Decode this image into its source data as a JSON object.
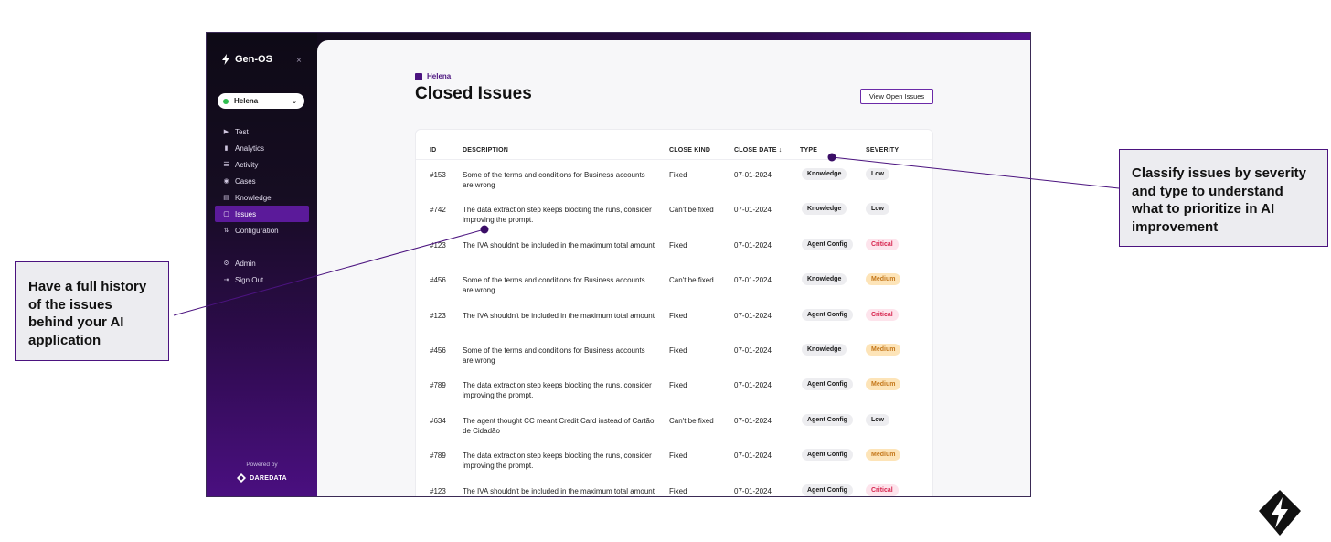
{
  "sidebar": {
    "brand": "Gen-OS",
    "close_glyph": "×",
    "project_selector": "Helena",
    "nav": [
      {
        "label": "Test",
        "icon": "play-icon",
        "glyph": "▶"
      },
      {
        "label": "Analytics",
        "icon": "bar-chart-icon",
        "glyph": "▮"
      },
      {
        "label": "Activity",
        "icon": "list-icon",
        "glyph": "☰"
      },
      {
        "label": "Cases",
        "icon": "cases-icon",
        "glyph": "◉"
      },
      {
        "label": "Knowledge",
        "icon": "book-icon",
        "glyph": "▤"
      },
      {
        "label": "Issues",
        "icon": "issues-icon",
        "glyph": "▢",
        "active": true
      },
      {
        "label": "Configuration",
        "icon": "sliders-icon",
        "glyph": "⇅"
      }
    ],
    "bottom_nav": [
      {
        "label": "Admin",
        "icon": "gear-icon",
        "glyph": "⚙"
      },
      {
        "label": "Sign Out",
        "icon": "sign-out-icon",
        "glyph": "⇥"
      }
    ],
    "powered_by": "Powered by",
    "powered_brand": "DAREDATA"
  },
  "header": {
    "breadcrumb": "Helena",
    "title": "Closed Issues",
    "view_open_button": "View Open Issues"
  },
  "table": {
    "columns": [
      "ID",
      "DESCRIPTION",
      "CLOSE KIND",
      "CLOSE DATE ↓",
      "TYPE",
      "SEVERITY"
    ],
    "rows": [
      {
        "id": "#153",
        "description": "Some of the terms and conditions for Business accounts are wrong",
        "close_kind": "Fixed",
        "close_date": "07-01-2024",
        "type": "Knowledge",
        "severity": "Low"
      },
      {
        "id": "#742",
        "description": "The data extraction step keeps blocking the runs, consider improving the prompt.",
        "close_kind": "Can't be fixed",
        "close_date": "07-01-2024",
        "type": "Knowledge",
        "severity": "Low"
      },
      {
        "id": "#123",
        "description": "The IVA shouldn't be included in the maximum total amount",
        "close_kind": "Fixed",
        "close_date": "07-01-2024",
        "type": "Agent Config",
        "severity": "Critical"
      },
      {
        "id": "#456",
        "description": "Some of the terms and conditions for Business accounts are wrong",
        "close_kind": "Can't be fixed",
        "close_date": "07-01-2024",
        "type": "Knowledge",
        "severity": "Medium"
      },
      {
        "id": "#123",
        "description": "The IVA shouldn't be included in the maximum total amount",
        "close_kind": "Fixed",
        "close_date": "07-01-2024",
        "type": "Agent Config",
        "severity": "Critical"
      },
      {
        "id": "#456",
        "description": "Some of the terms and conditions for Business accounts are wrong",
        "close_kind": "Fixed",
        "close_date": "07-01-2024",
        "type": "Knowledge",
        "severity": "Medium"
      },
      {
        "id": "#789",
        "description": "The data extraction step keeps blocking the runs, consider improving the prompt.",
        "close_kind": "Fixed",
        "close_date": "07-01-2024",
        "type": "Agent Config",
        "severity": "Medium"
      },
      {
        "id": "#634",
        "description": "The agent thought CC meant Credit Card instead of Cartão de Cidadão",
        "close_kind": "Can't be fixed",
        "close_date": "07-01-2024",
        "type": "Agent Config",
        "severity": "Low"
      },
      {
        "id": "#789",
        "description": "The data extraction step keeps blocking the runs, consider improving the prompt.",
        "close_kind": "Fixed",
        "close_date": "07-01-2024",
        "type": "Agent Config",
        "severity": "Medium"
      },
      {
        "id": "#123",
        "description": "The IVA shouldn't be included in the maximum total amount",
        "close_kind": "Fixed",
        "close_date": "07-01-2024",
        "type": "Agent Config",
        "severity": "Critical"
      }
    ]
  },
  "callouts": {
    "left": "Have a full history of the issues behind your AI application",
    "right": "Classify issues by severity and type to understand what to prioritize in AI improvement"
  },
  "colors": {
    "accent": "#4b137f",
    "critical": "#d7264f",
    "medium": "#c4771a"
  }
}
